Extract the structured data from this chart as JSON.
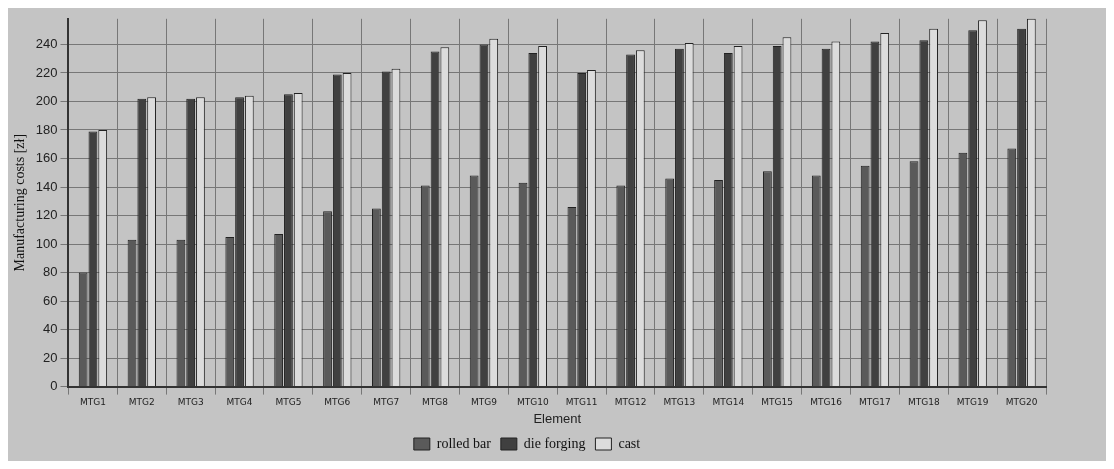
{
  "chart_data": {
    "type": "bar",
    "xlabel": "Element",
    "ylabel": "Manufacturing costs [zł]",
    "categories": [
      "MTG1",
      "MTG2",
      "MTG3",
      "MTG4",
      "MTG5",
      "MTG6",
      "MTG7",
      "MTG8",
      "MTG9",
      "MTG10",
      "MTG11",
      "MTG12",
      "MTG13",
      "MTG14",
      "MTG15",
      "MTG16",
      "MTG17",
      "MTG18",
      "MTG19",
      "MTG20"
    ],
    "series": [
      {
        "name": "rolled bar",
        "color": "#5a5a5a",
        "values": [
          80,
          103,
          103,
          105,
          107,
          123,
          125,
          141,
          148,
          143,
          126,
          141,
          146,
          145,
          151,
          148,
          155,
          158,
          164,
          167
        ]
      },
      {
        "name": "die forging",
        "color": "#404040",
        "values": [
          179,
          202,
          202,
          203,
          205,
          219,
          221,
          235,
          240,
          234,
          220,
          233,
          237,
          234,
          239,
          237,
          242,
          243,
          250,
          251
        ]
      },
      {
        "name": "cast",
        "color": "#dcdcdc",
        "values": [
          180,
          203,
          203,
          204,
          206,
          220,
          223,
          238,
          244,
          239,
          222,
          236,
          241,
          239,
          245,
          242,
          248,
          251,
          257,
          258
        ]
      }
    ],
    "ylim": [
      0,
      258
    ],
    "yticks": [
      0,
      20,
      40,
      60,
      80,
      100,
      120,
      140,
      160,
      180,
      200,
      220,
      240
    ],
    "grid": true,
    "legend": "bottom"
  }
}
